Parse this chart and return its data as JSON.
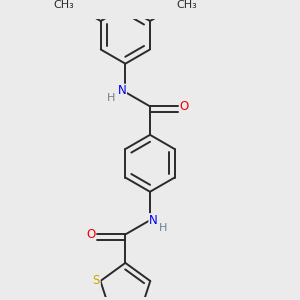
{
  "background_color": "#ebebeb",
  "bond_color": "#2a2a2a",
  "atom_colors": {
    "N": "#0000ee",
    "O": "#ee0000",
    "S": "#ccaa00",
    "H": "#708090"
  },
  "font_size": 8.5,
  "bond_width": 1.4,
  "fig_size": [
    3.0,
    3.0
  ],
  "dpi": 100
}
